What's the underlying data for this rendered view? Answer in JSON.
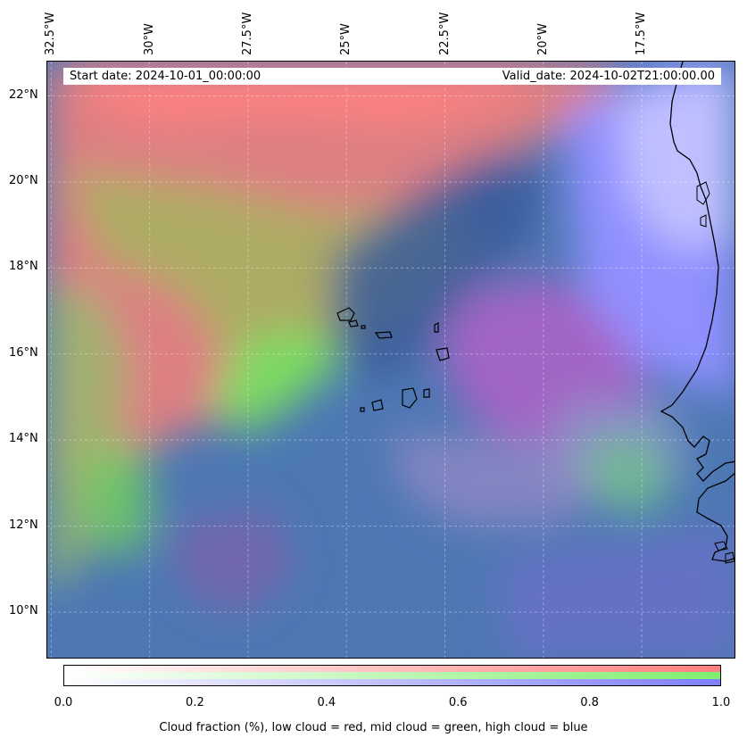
{
  "map": {
    "start_date": "Start date: 2024-10-01_00:00:00",
    "valid_date": "Valid_date: 2024-10-02T21:00:00.00",
    "lon_labels": [
      "32.5°W",
      "30°W",
      "27.5°W",
      "25°W",
      "22.5°W",
      "20°W",
      "17.5°W"
    ],
    "lat_labels": [
      "22°N",
      "20°N",
      "18°N",
      "16°N",
      "14°N",
      "12°N",
      "10°N"
    ],
    "lon_values": [
      -32.5,
      -30,
      -27.5,
      -25,
      -22.5,
      -20,
      -17.5
    ],
    "lat_values": [
      22,
      20,
      18,
      16,
      14,
      12,
      10
    ],
    "extent": {
      "lon_min": -32.6,
      "lon_max": -15.1,
      "lat_min": 8.9,
      "lat_max": 22.8
    },
    "colors": {
      "low_cloud": "#ff7f7f",
      "mid_cloud": "#7fef6f",
      "high_cloud": "#7f7fff",
      "background": "#4a78b8"
    }
  },
  "colorbar": {
    "ticks": [
      "0.0",
      "0.2",
      "0.4",
      "0.6",
      "0.8",
      "1.0"
    ],
    "tick_values": [
      0,
      0.2,
      0.4,
      0.6,
      0.8,
      1.0
    ],
    "label": "Cloud fraction (%), low cloud = red, mid cloud = green, high cloud = blue"
  }
}
